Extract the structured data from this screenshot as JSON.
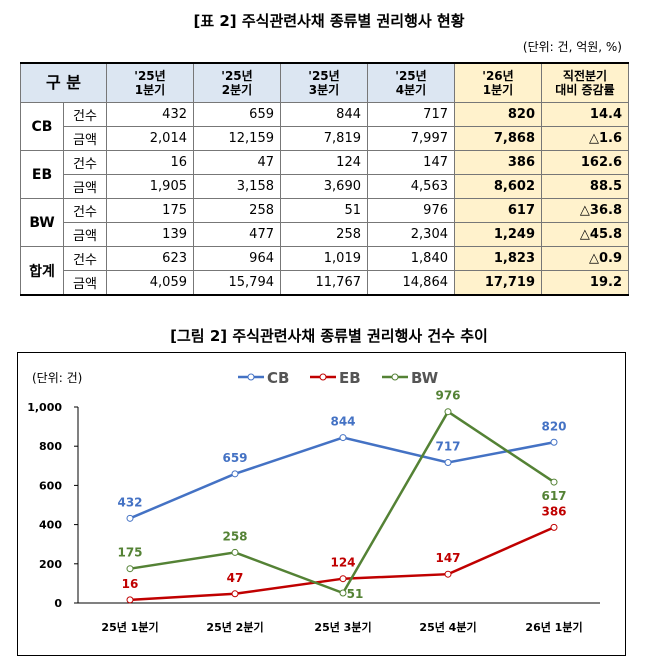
{
  "table": {
    "title": "[표 2] 주식관련사채 종류별 권리행사 현황",
    "unit": "(단위: 건, 억원, %)",
    "headers": [
      "구  분",
      "'25년\n1분기",
      "'25년\n2분기",
      "'25년\n3분기",
      "'25년\n4분기",
      "'26년\n1분기",
      "직전분기\n대비 증감률"
    ],
    "groups": [
      {
        "name": "CB",
        "rows": [
          {
            "label": "건수",
            "values": [
              "432",
              "659",
              "844",
              "717",
              "820",
              "14.4"
            ]
          },
          {
            "label": "금액",
            "values": [
              "2,014",
              "12,159",
              "7,819",
              "7,997",
              "7,868",
              "△1.6"
            ]
          }
        ]
      },
      {
        "name": "EB",
        "rows": [
          {
            "label": "건수",
            "values": [
              "16",
              "47",
              "124",
              "147",
              "386",
              "162.6"
            ]
          },
          {
            "label": "금액",
            "values": [
              "1,905",
              "3,158",
              "3,690",
              "4,563",
              "8,602",
              "88.5"
            ]
          }
        ]
      },
      {
        "name": "BW",
        "rows": [
          {
            "label": "건수",
            "values": [
              "175",
              "258",
              "51",
              "976",
              "617",
              "△36.8"
            ]
          },
          {
            "label": "금액",
            "values": [
              "139",
              "477",
              "258",
              "2,304",
              "1,249",
              "△45.8"
            ]
          }
        ]
      },
      {
        "name": "합계",
        "rows": [
          {
            "label": "건수",
            "values": [
              "623",
              "964",
              "1,019",
              "1,840",
              "1,823",
              "△0.9"
            ]
          },
          {
            "label": "금액",
            "values": [
              "4,059",
              "15,794",
              "11,767",
              "14,864",
              "17,719",
              "19.2"
            ]
          }
        ]
      }
    ]
  },
  "chart_data": {
    "type": "line",
    "title": "[그림 2] 주식관련사채 종류별 권리행사 건수 추이",
    "unit_label": "(단위: 건)",
    "categories": [
      "25년 1분기",
      "25년 2분기",
      "25년 3분기",
      "25년 4분기",
      "26년 1분기"
    ],
    "yticks": [
      "0",
      "200",
      "400",
      "600",
      "800",
      "1,000"
    ],
    "ylim": [
      0,
      1000
    ],
    "legend_position": "top",
    "series": [
      {
        "name": "CB",
        "color": "#4472c4",
        "values": [
          432,
          659,
          844,
          717,
          820
        ]
      },
      {
        "name": "EB",
        "color": "#c00000",
        "values": [
          16,
          47,
          124,
          147,
          386
        ]
      },
      {
        "name": "BW",
        "color": "#548235",
        "values": [
          175,
          258,
          51,
          976,
          617
        ]
      }
    ]
  }
}
